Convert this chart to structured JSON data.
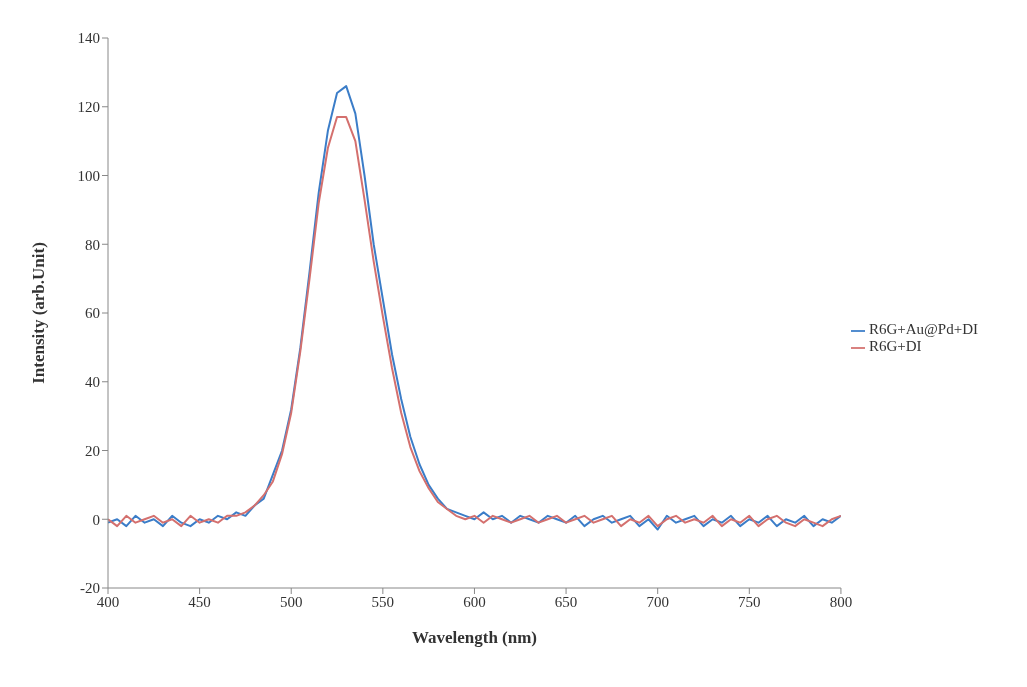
{
  "chart_data": {
    "type": "line",
    "xlabel": "Wavelength (nm)",
    "ylabel": "Intensity (arb.Unit)",
    "xlim": [
      400,
      800
    ],
    "xticks": [
      400,
      450,
      500,
      550,
      600,
      650,
      700,
      750,
      800
    ],
    "ylim": [
      -20,
      140
    ],
    "yticks": [
      -20,
      0,
      20,
      40,
      60,
      80,
      100,
      120,
      140
    ],
    "grid": false,
    "legend": "right",
    "marker": "none",
    "line_style": "solid",
    "series": [
      {
        "name": "R6G+Au@Pd+DI",
        "color": "#3b7dc8",
        "x": [
          400,
          405,
          410,
          415,
          420,
          425,
          430,
          435,
          440,
          445,
          450,
          455,
          460,
          465,
          470,
          475,
          480,
          485,
          490,
          495,
          500,
          505,
          510,
          515,
          520,
          525,
          530,
          535,
          540,
          545,
          550,
          555,
          560,
          565,
          570,
          575,
          580,
          585,
          590,
          595,
          600,
          605,
          610,
          615,
          620,
          625,
          630,
          635,
          640,
          645,
          650,
          655,
          660,
          665,
          670,
          675,
          680,
          685,
          690,
          695,
          700,
          705,
          710,
          715,
          720,
          725,
          730,
          735,
          740,
          745,
          750,
          755,
          760,
          765,
          770,
          775,
          780,
          785,
          790,
          795,
          800
        ],
        "values": [
          -1,
          0,
          -2,
          1,
          -1,
          0,
          -2,
          1,
          -1,
          -2,
          0,
          -1,
          1,
          0,
          2,
          1,
          4,
          6,
          13,
          20,
          32,
          50,
          72,
          95,
          113,
          124,
          126,
          118,
          100,
          80,
          64,
          48,
          35,
          24,
          16,
          10,
          6,
          3,
          2,
          1,
          0,
          2,
          0,
          1,
          -1,
          1,
          0,
          -1,
          1,
          0,
          -1,
          1,
          -2,
          0,
          1,
          -1,
          0,
          1,
          -2,
          0,
          -3,
          1,
          -1,
          0,
          1,
          -2,
          0,
          -1,
          1,
          -2,
          0,
          -1,
          1,
          -2,
          0,
          -1,
          1,
          -2,
          0,
          -1,
          1
        ]
      },
      {
        "name": "R6G+DI",
        "color": "#d4706e",
        "x": [
          400,
          405,
          410,
          415,
          420,
          425,
          430,
          435,
          440,
          445,
          450,
          455,
          460,
          465,
          470,
          475,
          480,
          485,
          490,
          495,
          500,
          505,
          510,
          515,
          520,
          525,
          530,
          535,
          540,
          545,
          550,
          555,
          560,
          565,
          570,
          575,
          580,
          585,
          590,
          595,
          600,
          605,
          610,
          615,
          620,
          625,
          630,
          635,
          640,
          645,
          650,
          655,
          660,
          665,
          670,
          675,
          680,
          685,
          690,
          695,
          700,
          705,
          710,
          715,
          720,
          725,
          730,
          735,
          740,
          745,
          750,
          755,
          760,
          765,
          770,
          775,
          780,
          785,
          790,
          795,
          800
        ],
        "values": [
          0,
          -2,
          1,
          -1,
          0,
          1,
          -1,
          0,
          -2,
          1,
          -1,
          0,
          -1,
          1,
          1,
          2,
          4,
          7,
          11,
          19,
          31,
          49,
          70,
          92,
          108,
          117,
          117,
          110,
          93,
          75,
          59,
          44,
          31,
          21,
          14,
          9,
          5,
          3,
          1,
          0,
          1,
          -1,
          1,
          0,
          -1,
          0,
          1,
          -1,
          0,
          1,
          -1,
          0,
          1,
          -1,
          0,
          1,
          -2,
          0,
          -1,
          1,
          -2,
          0,
          1,
          -1,
          0,
          -1,
          1,
          -2,
          0,
          -1,
          1,
          -2,
          0,
          1,
          -1,
          -2,
          0,
          -1,
          -2,
          0,
          1
        ]
      }
    ]
  }
}
